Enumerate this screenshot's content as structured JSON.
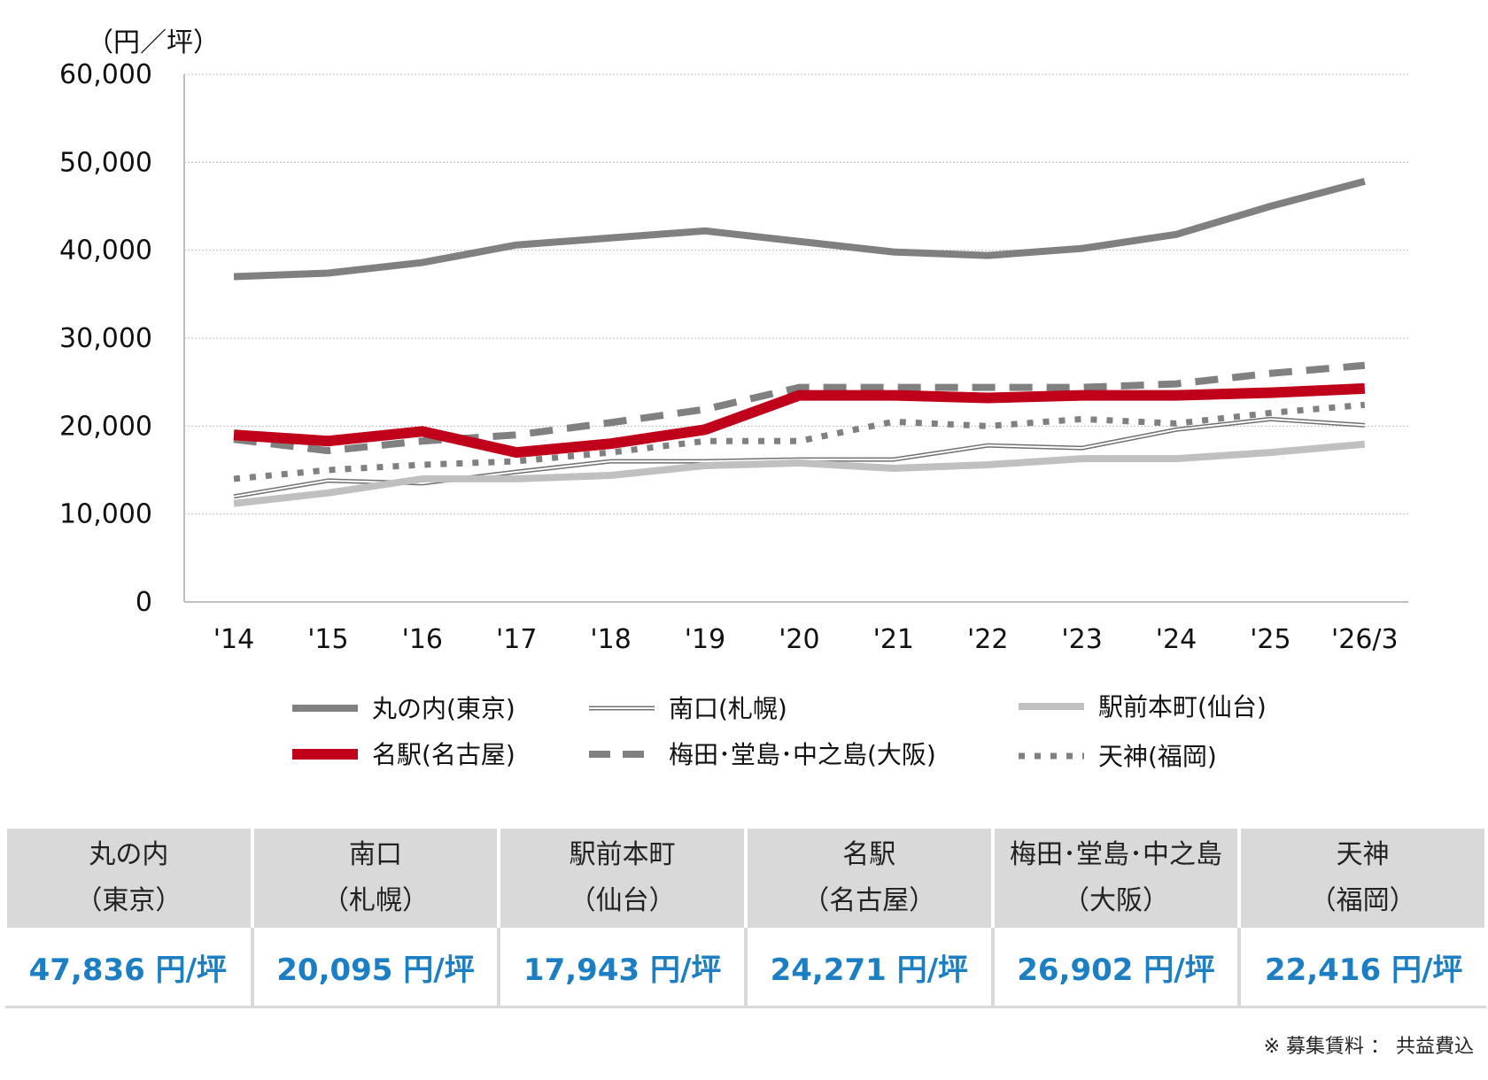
{
  "chart_data": {
    "type": "line",
    "unit_label": "（円／坪）",
    "ylim": [
      0,
      60000
    ],
    "y_ticks": [
      "0",
      "10,000",
      "20,000",
      "30,000",
      "40,000",
      "50,000",
      "60,000"
    ],
    "x": [
      "'14",
      "'15",
      "'16",
      "'17",
      "'18",
      "'19",
      "'20",
      "'21",
      "'22",
      "'23",
      "'24",
      "'25",
      "'26/3"
    ],
    "grid": "horizontal dotted",
    "legend_position": "bottom",
    "series": [
      {
        "name": "丸の内(東京)",
        "color": "#808080",
        "style": "solid-thick",
        "values": [
          37000,
          37400,
          38600,
          40600,
          41400,
          42200,
          41000,
          39800,
          39400,
          40200,
          41800,
          45000,
          47836
        ]
      },
      {
        "name": "南口(札幌)",
        "color": "#707070",
        "style": "double",
        "values": [
          12000,
          13800,
          13500,
          14800,
          16000,
          16000,
          16200,
          16200,
          17800,
          17500,
          19600,
          20800,
          20095
        ]
      },
      {
        "name": "駅前本町(仙台)",
        "color": "#c0c0c0",
        "style": "solid-thick",
        "values": [
          11200,
          12400,
          14000,
          14000,
          14400,
          15500,
          15800,
          15200,
          15600,
          16300,
          16300,
          17000,
          17943
        ]
      },
      {
        "name": "名駅(名古屋)",
        "color": "#c0001a",
        "style": "solid-heavy",
        "values": [
          19000,
          18300,
          19400,
          17000,
          18000,
          19600,
          23500,
          23500,
          23200,
          23500,
          23500,
          23800,
          24271
        ]
      },
      {
        "name": "梅田･堂島･中之島(大阪)",
        "color": "#808080",
        "style": "dashed",
        "values": [
          18500,
          17200,
          18300,
          19000,
          20400,
          21900,
          24400,
          24400,
          24400,
          24400,
          24800,
          26000,
          26902
        ]
      },
      {
        "name": "天神(福岡)",
        "color": "#808080",
        "style": "dotted",
        "values": [
          14000,
          15000,
          15600,
          16000,
          17000,
          18300,
          18300,
          20500,
          20000,
          20800,
          20300,
          21500,
          22416
        ]
      }
    ]
  },
  "table": {
    "columns": [
      {
        "line1": "丸の内",
        "line2": "（東京）",
        "value": "47,836 円/坪"
      },
      {
        "line1": "南口",
        "line2": "（札幌）",
        "value": "20,095 円/坪"
      },
      {
        "line1": "駅前本町",
        "line2": "（仙台）",
        "value": "17,943 円/坪"
      },
      {
        "line1": "名駅",
        "line2": "（名古屋）",
        "value": "24,271 円/坪"
      },
      {
        "line1": "梅田･堂島･中之島",
        "line2": "（大阪）",
        "value": "26,902 円/坪"
      },
      {
        "line1": "天神",
        "line2": "（福岡）",
        "value": "22,416 円/坪"
      }
    ]
  },
  "note": "※ 募集賃料 ： 共益費込"
}
